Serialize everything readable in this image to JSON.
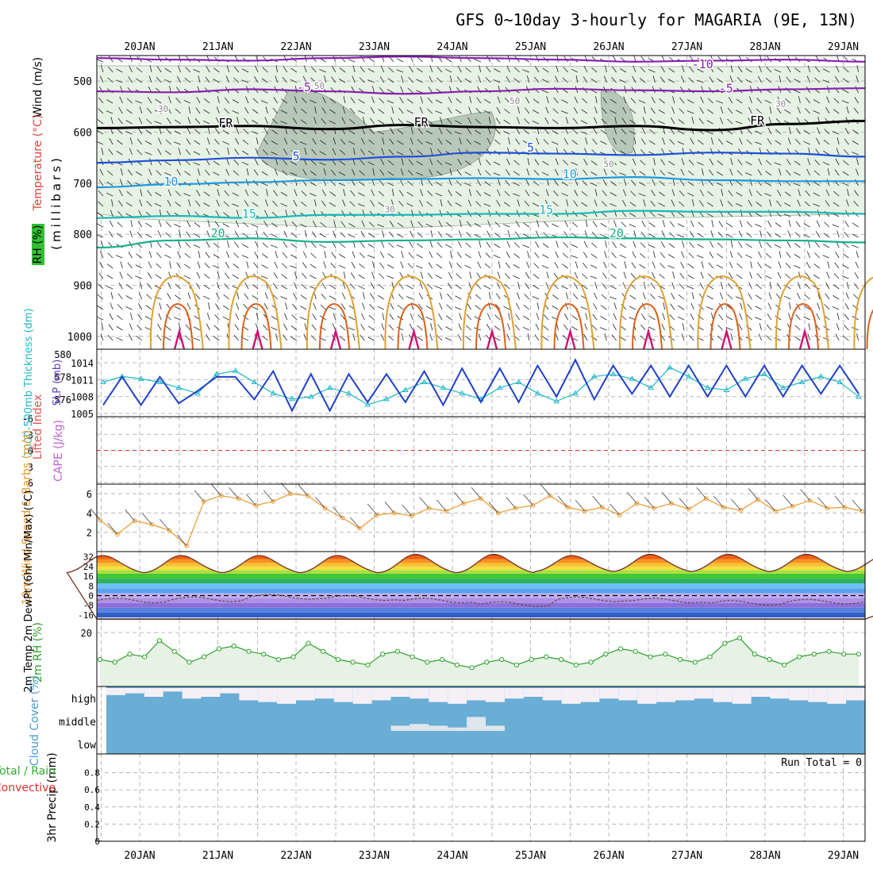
{
  "header": {
    "title": "GFS 0~10day 3-hourly for MAGARIA (9E, 13N)"
  },
  "colors": {
    "grid": "#b8b8b8",
    "frame": "#000000",
    "rh_fill": "#e6f2e3",
    "rh_fill_dark": "#b8c8b8",
    "temp_neg": "#8a1fb0",
    "temp_fr": "#000000",
    "temp_5": "#2050d8",
    "temp_10": "#1d98e0",
    "temp_15": "#18b8b8",
    "temp_20": "#16b088",
    "temp_25": "#e0a030",
    "temp_30": "#e06018",
    "temp_35": "#d01070",
    "slp": "#2040c8",
    "thickness": "#20b8c8",
    "wind_speed": "#e89a30",
    "rh2m": "#30a030",
    "cloud": "#6aaed6",
    "cloud_clear": "#f4f0f6",
    "lifted_zero": "#e03030",
    "cape_label": "#c060d0",
    "precip_total": "#30b030",
    "precip_conv": "#e03030"
  },
  "chart_data": [
    {
      "id": "upper_air",
      "type": "contour",
      "y_axis_label": "(millibars)",
      "side_labels": [
        "Wind (m/s)",
        "Temperature (°C)",
        "RH (%)"
      ],
      "levels_mb": [
        500,
        600,
        700,
        800,
        900,
        1000
      ],
      "level_tick_labels": [
        "500",
        "600",
        "700",
        "800",
        "900",
        "1000"
      ],
      "ylim": [
        450,
        1025
      ],
      "date_labels": [
        "20JAN",
        "21JAN",
        "22JAN",
        "23JAN",
        "24JAN",
        "25JAN",
        "26JAN",
        "27JAN",
        "28JAN",
        "29JAN"
      ],
      "contour_labels": [
        {
          "text": "-10",
          "day": 7.2,
          "mb": 475,
          "series": "temp_neg"
        },
        {
          "text": "-5",
          "day": 2.1,
          "mb": 520,
          "series": "temp_neg"
        },
        {
          "text": "-5",
          "day": 7.5,
          "mb": 522,
          "series": "temp_neg"
        },
        {
          "text": "FR",
          "day": 1.1,
          "mb": 590,
          "series": "temp_fr"
        },
        {
          "text": "FR",
          "day": 3.6,
          "mb": 588,
          "series": "temp_fr"
        },
        {
          "text": "FR",
          "day": 7.9,
          "mb": 585,
          "series": "temp_fr"
        },
        {
          "text": "5",
          "day": 2.0,
          "mb": 655,
          "series": "temp_5"
        },
        {
          "text": "5",
          "day": 5.0,
          "mb": 638,
          "series": "temp_5"
        },
        {
          "text": "10",
          "day": 0.4,
          "mb": 705,
          "series": "temp_10"
        },
        {
          "text": "10",
          "day": 5.5,
          "mb": 690,
          "series": "temp_10"
        },
        {
          "text": "15",
          "day": 1.4,
          "mb": 768,
          "series": "temp_15"
        },
        {
          "text": "15",
          "day": 5.2,
          "mb": 760,
          "series": "temp_15"
        },
        {
          "text": "20",
          "day": 1.0,
          "mb": 806,
          "series": "temp_20"
        },
        {
          "text": "20",
          "day": 6.1,
          "mb": 806,
          "series": "temp_20"
        },
        {
          "text": "50",
          "day": 2.3,
          "mb": 515,
          "series": "rh"
        },
        {
          "text": "30",
          "day": 0.3,
          "mb": 560,
          "series": "rh"
        },
        {
          "text": "50",
          "day": 4.8,
          "mb": 545,
          "series": "rh"
        },
        {
          "text": "30",
          "day": 8.2,
          "mb": 550,
          "series": "rh"
        },
        {
          "text": "50",
          "day": 6.0,
          "mb": 668,
          "series": "rh"
        },
        {
          "text": "30",
          "day": 3.2,
          "mb": 757,
          "series": "rh"
        }
      ],
      "isotherms": [
        {
          "name": "-10",
          "series": "temp_neg",
          "mb": [
            455,
            458,
            460,
            455,
            452,
            455,
            458,
            462,
            460,
            458,
            462
          ]
        },
        {
          "name": "-5",
          "series": "temp_neg",
          "mb": [
            520,
            522,
            516,
            520,
            525,
            520,
            515,
            518,
            520,
            516,
            514
          ]
        },
        {
          "name": "FR",
          "series": "temp_fr",
          "mb": [
            592,
            590,
            588,
            594,
            586,
            590,
            592,
            588,
            596,
            584,
            578
          ]
        },
        {
          "name": "5",
          "series": "temp_5",
          "mb": [
            660,
            655,
            650,
            654,
            648,
            640,
            642,
            645,
            640,
            642,
            648
          ]
        },
        {
          "name": "10",
          "series": "temp_10",
          "mb": [
            708,
            702,
            698,
            694,
            692,
            690,
            692,
            688,
            694,
            696,
            696
          ]
        },
        {
          "name": "15",
          "series": "temp_15",
          "mb": [
            768,
            764,
            768,
            762,
            762,
            760,
            760,
            754,
            756,
            756,
            760
          ]
        },
        {
          "name": "20",
          "series": "temp_20",
          "mb": [
            826,
            812,
            808,
            815,
            812,
            810,
            806,
            808,
            810,
            812,
            816
          ]
        }
      ],
      "rh_contours": [
        30,
        50
      ],
      "low_temp_contours": [
        "25",
        "30",
        "35"
      ]
    },
    {
      "id": "slp_thickness",
      "type": "line",
      "left_label": "1000-500mb Thickness (dm)",
      "right_label": "SLP (mb)",
      "left_ticks": [
        "576",
        "578",
        "580"
      ],
      "right_ticks": [
        "1005",
        "1008",
        "1011",
        "1014"
      ],
      "series": [
        {
          "name": "SLP (mb)",
          "color_key": "slp",
          "values": [
            1006.5,
            1011.5,
            1006.5,
            1011.5,
            1006.8,
            1009.0,
            1011.5,
            1011.5,
            1007.5,
            1012.5,
            1005.5,
            1012.0,
            1005.5,
            1012.0,
            1007.0,
            1012.0,
            1007.0,
            1012.5,
            1006.5,
            1013.0,
            1007.0,
            1013.0,
            1007.0,
            1013.5,
            1008.0,
            1014.5,
            1007.5,
            1013.5,
            1008.5,
            1013.5,
            1008.0,
            1013.5,
            1008.0,
            1013.5,
            1008.0,
            1013.5,
            1008.0,
            1013.5,
            1008.5,
            1013.5,
            1008.5
          ]
        },
        {
          "name": "1000-500mb Thickness (dm)",
          "color_key": "thickness",
          "values": [
            577.5,
            578.0,
            577.8,
            577.5,
            577.0,
            576.5,
            578.2,
            578.5,
            577.5,
            576.5,
            576.0,
            576.2,
            577.0,
            576.5,
            575.5,
            576.0,
            576.8,
            577.5,
            577.0,
            576.5,
            576.0,
            577.0,
            577.5,
            576.5,
            575.8,
            576.5,
            578.0,
            578.2,
            577.8,
            577.0,
            578.8,
            578.0,
            577.0,
            576.8,
            577.8,
            578.2,
            577.0,
            577.5,
            578.0,
            577.5,
            576.2
          ]
        }
      ]
    },
    {
      "id": "stability",
      "type": "line",
      "left_label": "Lifted Index",
      "right_label": "CAPE (J/kg)",
      "ticks": [
        "-6",
        "-3",
        "0",
        "3",
        "6"
      ]
    },
    {
      "id": "wind10m",
      "type": "line",
      "label": "10m Wind Speed & Barbs (m/s)",
      "ticks": [
        "2",
        "4",
        "6"
      ],
      "ylim": [
        0,
        7
      ],
      "values": [
        3.3,
        1.8,
        3.2,
        2.8,
        2.2,
        0.6,
        5.2,
        5.8,
        5.5,
        4.8,
        5.2,
        6.0,
        5.8,
        4.5,
        3.5,
        2.4,
        3.8,
        4.0,
        3.7,
        4.5,
        4.2,
        5.0,
        5.5,
        4.0,
        4.5,
        4.8,
        5.8,
        4.6,
        4.2,
        4.6,
        3.8,
        5.0,
        4.5,
        5.0,
        4.4,
        5.5,
        4.6,
        4.3,
        5.4,
        4.2,
        4.7,
        5.3,
        4.5,
        4.6,
        4.2
      ]
    },
    {
      "id": "temp2m",
      "type": "area",
      "label": "2m Temp 2m DewPt (6hr Min/Max) (°C)",
      "ticks": [
        "32",
        "24",
        "16",
        "8",
        "0",
        "-8",
        "-16"
      ],
      "ylim": [
        -18,
        35
      ],
      "temp_max": [
        33,
        33,
        33,
        34,
        34,
        33,
        34,
        34,
        34,
        33
      ],
      "temp_min": [
        19,
        19,
        19,
        19,
        19,
        20,
        20,
        20,
        20,
        20
      ],
      "dewpoint": [
        -4,
        -3,
        -1,
        -2,
        -4,
        -7,
        -3,
        -4,
        -6,
        -5
      ]
    },
    {
      "id": "rh2m",
      "type": "line",
      "label": "2m RH (%)",
      "ticks": [
        "20"
      ],
      "ylim": [
        0,
        25
      ],
      "values": [
        10,
        9,
        12,
        11,
        17,
        13,
        9,
        11,
        14,
        15,
        13,
        12,
        10,
        11,
        16,
        13,
        10,
        9,
        8,
        12,
        13,
        11,
        9,
        10,
        8,
        7,
        9,
        10,
        8,
        10,
        11,
        10,
        8,
        9,
        12,
        14,
        13,
        11,
        12,
        10,
        9,
        11,
        16,
        18,
        12,
        10,
        8,
        11,
        12,
        13,
        12,
        12
      ]
    },
    {
      "id": "cloud",
      "type": "bar",
      "label": "Cloud Cover (%)",
      "ticks": [
        "high",
        "middle",
        "low"
      ],
      "high_clear_fraction": [
        0.4,
        0.3,
        0.5,
        0.2,
        0.6,
        0.5,
        0.3,
        0.7,
        0.8,
        0.9,
        0.7,
        0.6,
        0.8,
        0.9,
        0.7,
        0.5,
        0.6,
        0.8,
        0.9,
        0.7,
        0.8,
        0.6,
        0.5,
        0.7,
        0.9,
        0.8,
        0.6,
        0.7,
        0.9,
        0.8,
        0.7,
        0.6,
        0.8,
        0.9,
        0.5,
        0.6,
        0.7,
        0.8,
        0.9,
        0.7
      ],
      "middle_clear": [
        0,
        0,
        0,
        0,
        0,
        0,
        0,
        0,
        0,
        0,
        0,
        0,
        0,
        0,
        0,
        0.3,
        0.4,
        0.3,
        0.2,
        0.8,
        0.3,
        0,
        0,
        0,
        0,
        0,
        0,
        0,
        0,
        0,
        0,
        0,
        0,
        0,
        0,
        0,
        0,
        0,
        0,
        0
      ]
    },
    {
      "id": "precip",
      "type": "bar",
      "label": "3hr Precip (mm)",
      "left_labels": [
        "Total / Rain",
        "Convective"
      ],
      "ticks": [
        "0",
        "0.2",
        "0.4",
        "0.6",
        "0.8"
      ],
      "ylim": [
        0,
        1
      ],
      "run_total_label": "Run Total = 0",
      "values": []
    }
  ]
}
